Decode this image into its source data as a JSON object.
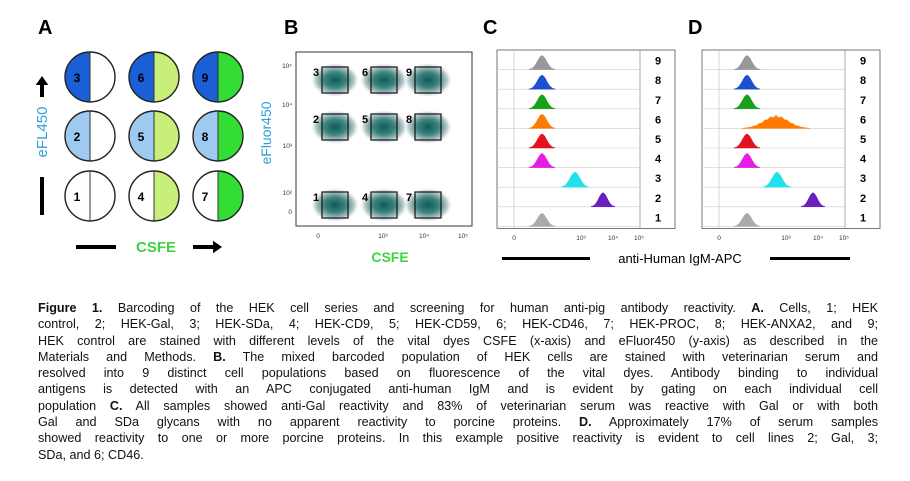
{
  "figure": {
    "panels": {
      "A": {
        "letter": "A",
        "y_axis_label": "eFL450",
        "x_axis_label": "CSFE",
        "circles": [
          {
            "number": "1",
            "left_color": "#ffffff",
            "right_color": "#ffffff"
          },
          {
            "number": "2",
            "left_color": "#9ec9f0",
            "right_color": "#ffffff"
          },
          {
            "number": "3",
            "left_color": "#1a5fd6",
            "right_color": "#ffffff"
          },
          {
            "number": "4",
            "left_color": "#ffffff",
            "right_color": "#c8ef7a"
          },
          {
            "number": "5",
            "left_color": "#9ec9f0",
            "right_color": "#c8ef7a"
          },
          {
            "number": "6",
            "left_color": "#1a5fd6",
            "right_color": "#c8ef7a"
          },
          {
            "number": "7",
            "left_color": "#ffffff",
            "right_color": "#33dd33"
          },
          {
            "number": "8",
            "left_color": "#9ec9f0",
            "right_color": "#33dd33"
          },
          {
            "number": "9",
            "left_color": "#1a5fd6",
            "right_color": "#33dd33"
          }
        ]
      },
      "B": {
        "letter": "B",
        "y_axis_label": "eFluor450",
        "x_axis_label": "CSFE",
        "gate_labels": [
          "1",
          "2",
          "3",
          "4",
          "5",
          "6",
          "7",
          "8",
          "9"
        ],
        "x_ticks": [
          "0",
          "10³",
          "10⁴",
          "10⁵"
        ],
        "y_ticks": [
          "10⁵",
          "10⁴",
          "10³",
          "10²",
          "0"
        ]
      },
      "C": {
        "letter": "C",
        "row_labels": [
          "9",
          "8",
          "7",
          "6",
          "5",
          "4",
          "3",
          "2",
          "1"
        ],
        "x_ticks": [
          "0",
          "10³",
          "10⁴",
          "10⁵"
        ]
      },
      "D": {
        "letter": "D",
        "row_labels": [
          "9",
          "8",
          "7",
          "6",
          "5",
          "4",
          "3",
          "2",
          "1"
        ],
        "x_ticks": [
          "0",
          "10³",
          "10⁴",
          "10⁵"
        ]
      }
    },
    "shared_x_label": "anti-Human IgM-APC",
    "histogram_colors": [
      "#999999",
      "#1e4fd0",
      "#17a117",
      "#ff7a00",
      "#e2131d",
      "#e61ce6",
      "#22e0ee",
      "#6a1fc0",
      "#aaaaaa"
    ]
  },
  "caption": {
    "lines": [
      [
        {
          "t": "Figure 1.",
          "b": true
        },
        {
          "t": "  Barcoding of the HEK cell series and screening for human anti-pig antibody reactivity.  "
        },
        {
          "t": "A.",
          "b": true
        },
        {
          "t": " Cells, 1; HEK"
        }
      ],
      [
        {
          "t": "control, 2; HEK-Gal, 3; HEK-SDa, 4; HEK-CD9, 5; HEK-CD59, 6; HEK-CD46, 7; HEK-PROC, 8; HEK-ANXA2, and 9;"
        }
      ],
      [
        {
          "t": "HEK control are stained with different levels of the vital dyes CSFE (x-axis) and eFluor450 (y-axis) as described in the"
        }
      ],
      [
        {
          "t": "Materials and Methods.  "
        },
        {
          "t": "B.",
          "b": true
        },
        {
          "t": "  The mixed barcoded population of HEK cells are stained with veterinarian serum and"
        }
      ],
      [
        {
          "t": "resolved into 9 distinct cell populations based on fluorescence of the vital dyes.  Antibody binding to individual"
        }
      ],
      [
        {
          "t": "antigens is detected with an APC conjugated anti-human IgM and is evident by gating on each individual cell"
        }
      ],
      [
        {
          "t": "population  "
        },
        {
          "t": "C.",
          "b": true
        },
        {
          "t": " All samples showed anti-Gal reactivity and 83% of veterinarian serum was reactive with Gal or with both"
        }
      ],
      [
        {
          "t": "Gal and SDa glycans with no apparent reactivity to porcine proteins.   "
        },
        {
          "t": "D.",
          "b": true
        },
        {
          "t": "  Approximately 17% of serum samples"
        }
      ],
      [
        {
          "t": "showed reactivity to one or more porcine proteins.  In this example positive reactivity is evident to cell lines 2; Gal, 3;"
        }
      ],
      [
        {
          "t": "SDa, and 6; CD46."
        }
      ]
    ]
  }
}
